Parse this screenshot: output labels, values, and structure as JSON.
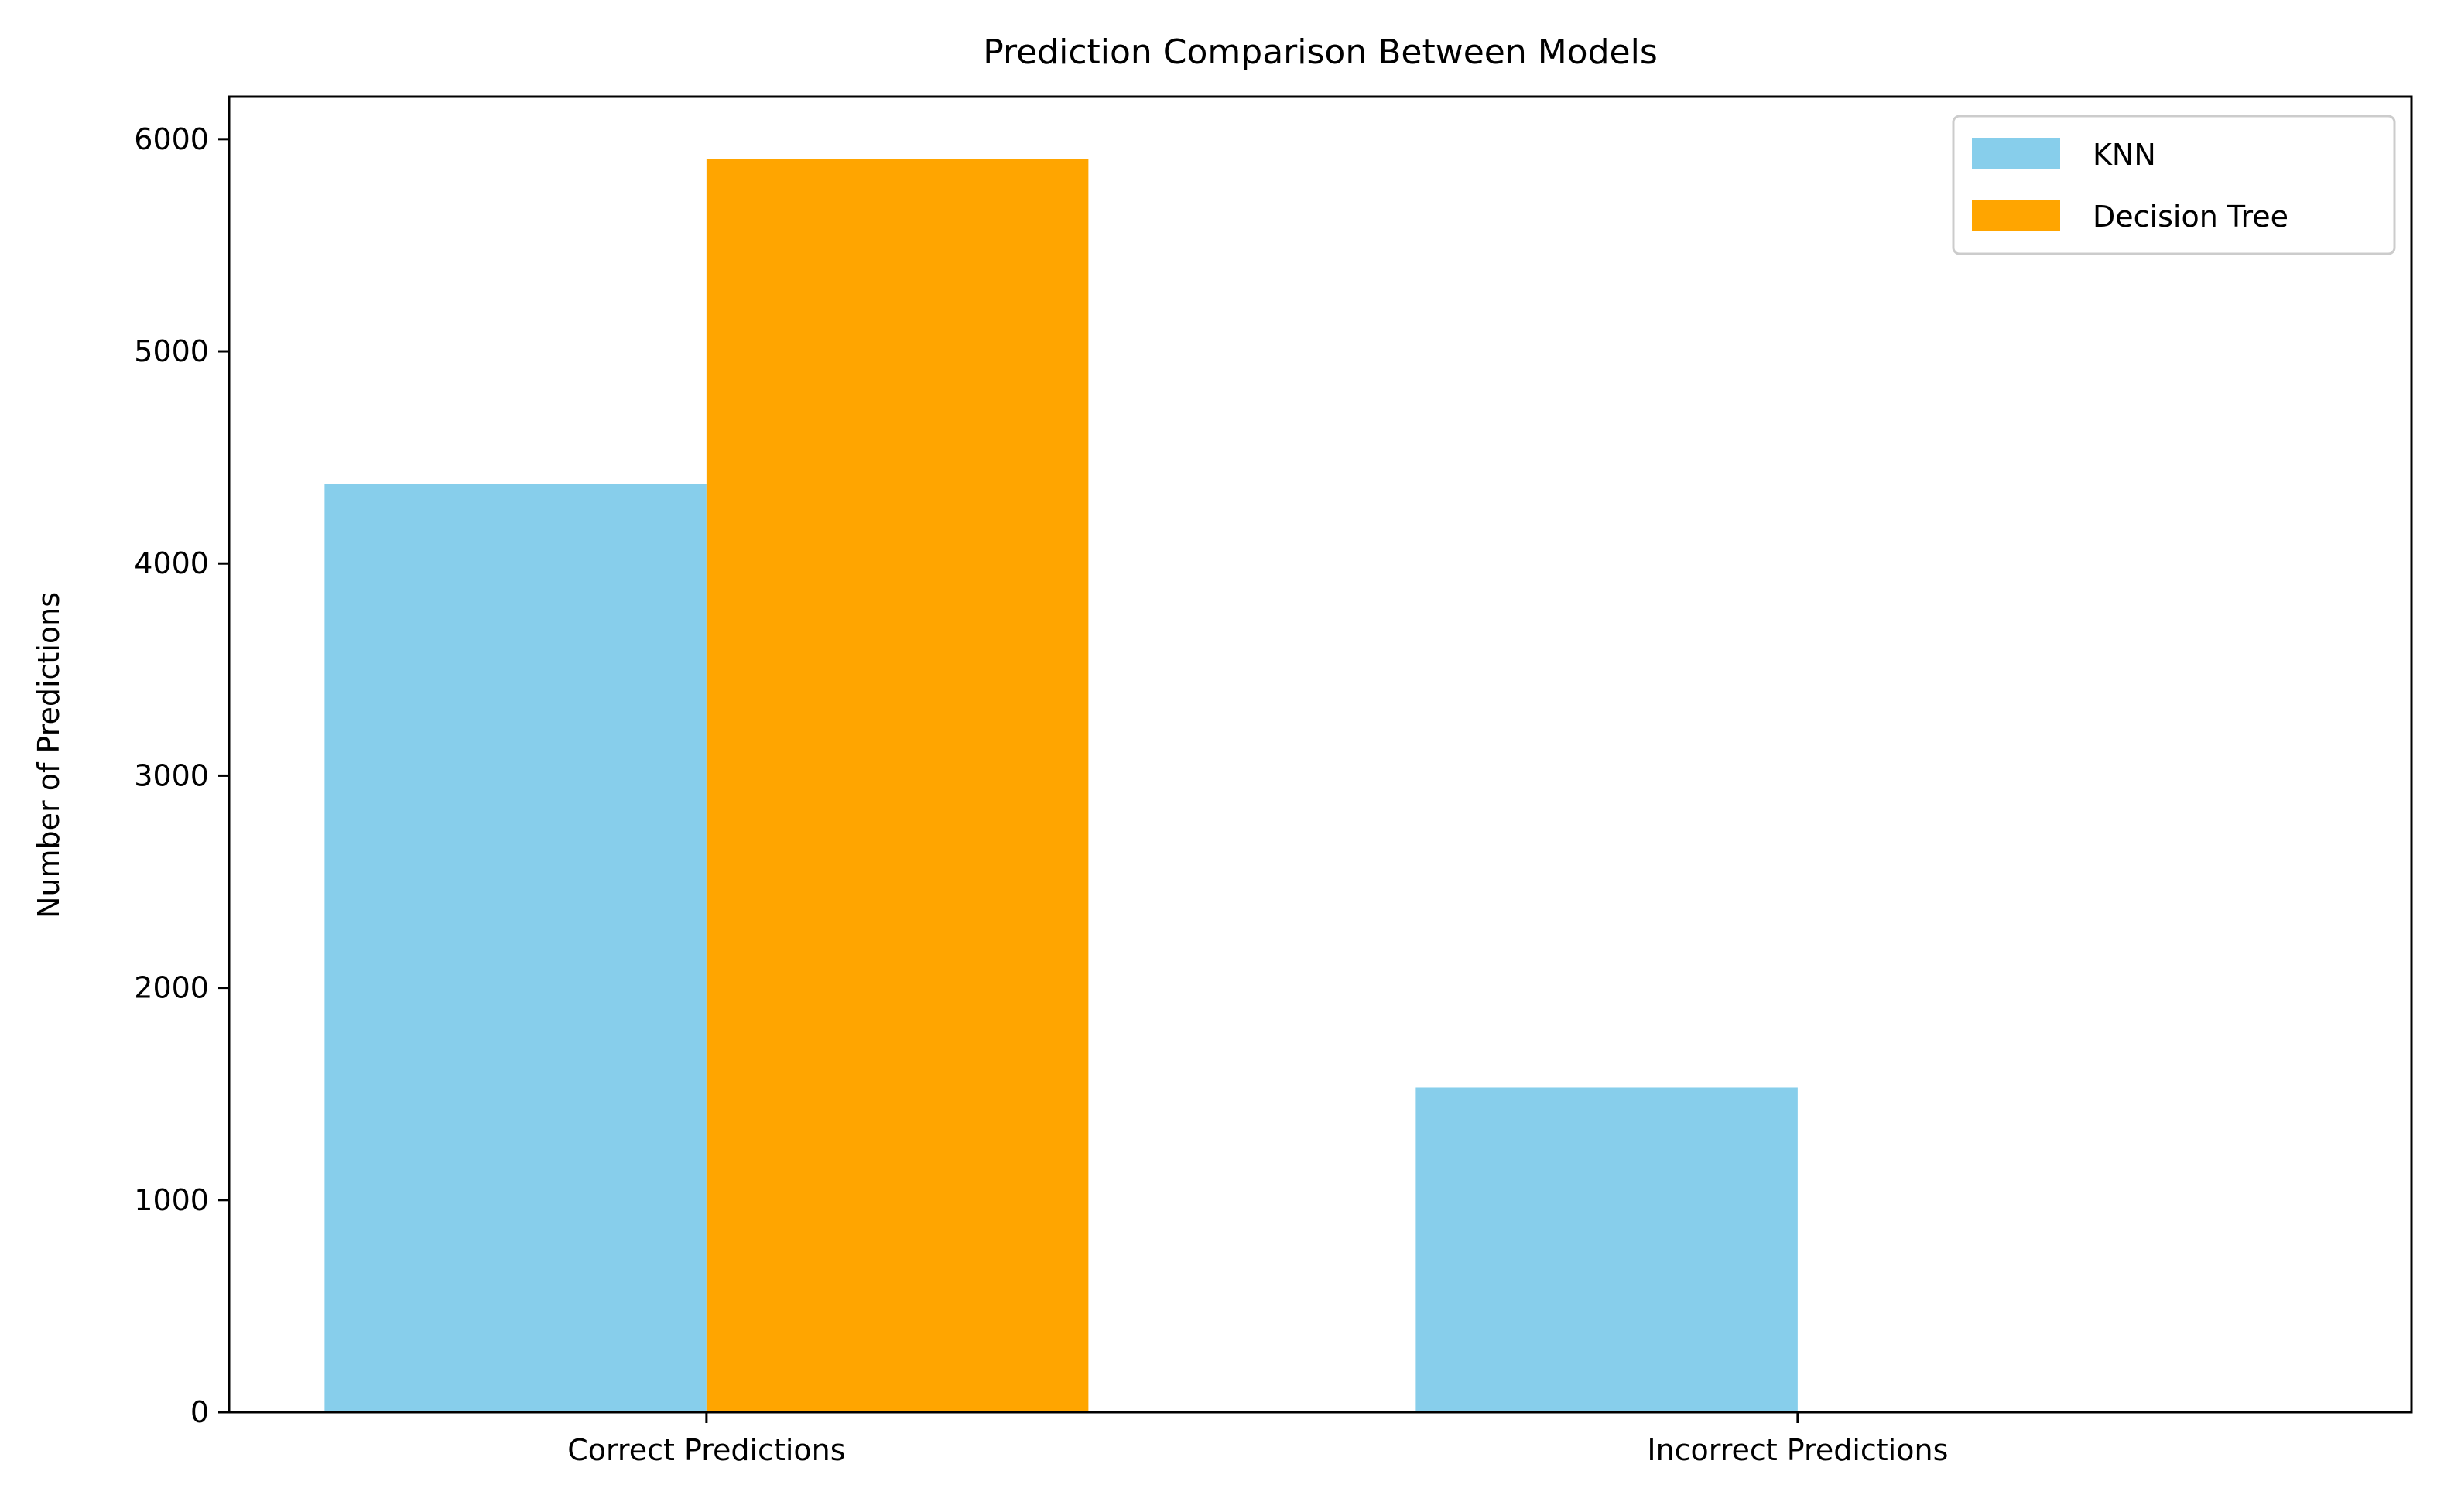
{
  "chart_data": {
    "type": "bar",
    "title": "Prediction Comparison Between Models",
    "xlabel": "",
    "ylabel": "Number of Predictions",
    "categories": [
      "Correct Predictions",
      "Incorrect Predictions"
    ],
    "series": [
      {
        "name": "KNN",
        "color": "#87CEEB",
        "values": [
          4375,
          1530
        ]
      },
      {
        "name": "Decision Tree",
        "color": "#FFA500",
        "values": [
          5905,
          0
        ]
      }
    ],
    "yticks": [
      "0",
      "1000",
      "2000",
      "3000",
      "4000",
      "5000",
      "6000"
    ],
    "ylim": [
      0,
      6200
    ],
    "grid": false,
    "legend_position": "top-right"
  }
}
